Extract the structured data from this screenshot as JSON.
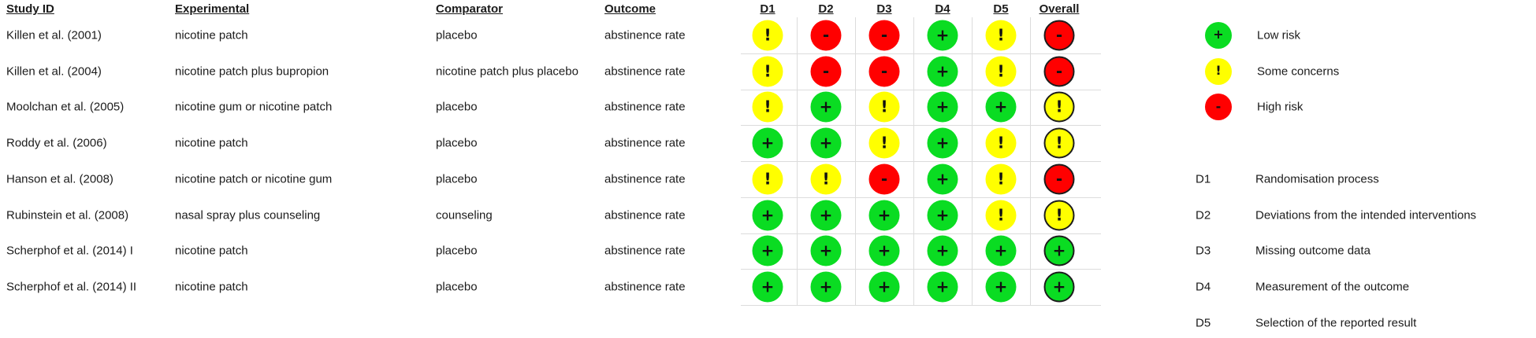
{
  "table": {
    "headers": {
      "study": "Study ID",
      "experimental": "Experimental",
      "comparator": "Comparator",
      "outcome": "Outcome",
      "domains": [
        "D1",
        "D2",
        "D3",
        "D4",
        "D5"
      ],
      "overall": "Overall"
    },
    "rows": [
      {
        "study": "Killen et al. (2001)",
        "experimental": "nicotine patch",
        "comparator": "placebo",
        "outcome": "abstinence rate",
        "judgements": [
          "some",
          "high",
          "high",
          "low",
          "some"
        ],
        "overall": "high"
      },
      {
        "study": "Killen et al. (2004)",
        "experimental": "nicotine patch plus bupropion",
        "comparator": "nicotine patch plus placebo",
        "outcome": "abstinence rate",
        "judgements": [
          "some",
          "high",
          "high",
          "low",
          "some"
        ],
        "overall": "high"
      },
      {
        "study": "Moolchan et al. (2005)",
        "experimental": "nicotine gum or nicotine patch",
        "comparator": "placebo",
        "outcome": "abstinence rate",
        "judgements": [
          "some",
          "low",
          "some",
          "low",
          "low"
        ],
        "overall": "some"
      },
      {
        "study": "Roddy et al. (2006)",
        "experimental": "nicotine patch",
        "comparator": "placebo",
        "outcome": "abstinence rate",
        "judgements": [
          "low",
          "low",
          "some",
          "low",
          "some"
        ],
        "overall": "some"
      },
      {
        "study": "Hanson et al. (2008)",
        "experimental": "nicotine patch or nicotine gum",
        "comparator": "placebo",
        "outcome": "abstinence rate",
        "judgements": [
          "some",
          "some",
          "high",
          "low",
          "some"
        ],
        "overall": "high"
      },
      {
        "study": "Rubinstein et al. (2008)",
        "experimental": "nasal spray plus counseling",
        "comparator": "counseling",
        "outcome": "abstinence rate",
        "judgements": [
          "low",
          "low",
          "low",
          "low",
          "some"
        ],
        "overall": "some"
      },
      {
        "study": "Scherphof et al. (2014) I",
        "experimental": "nicotine patch",
        "comparator": "placebo",
        "outcome": "abstinence rate",
        "judgements": [
          "low",
          "low",
          "low",
          "low",
          "low"
        ],
        "overall": "low"
      },
      {
        "study": "Scherphof et al. (2014) II",
        "experimental": "nicotine patch",
        "comparator": "placebo",
        "outcome": "abstinence rate",
        "judgements": [
          "low",
          "low",
          "low",
          "low",
          "low"
        ],
        "overall": "low"
      }
    ]
  },
  "judgement_styles": {
    "low": {
      "symbol": "+",
      "color": "#0adc22",
      "label": "Low risk"
    },
    "some": {
      "symbol": "!",
      "color": "#ffff00",
      "label": "Some concerns"
    },
    "high": {
      "symbol": "-",
      "color": "#ff0000",
      "label": "High risk"
    }
  },
  "legend": {
    "items": [
      {
        "judgement": "low",
        "label": "Low risk"
      },
      {
        "judgement": "some",
        "label": "Some concerns"
      },
      {
        "judgement": "high",
        "label": "High risk"
      }
    ]
  },
  "domain_definitions": [
    {
      "id": "D1",
      "label": "Randomisation process"
    },
    {
      "id": "D2",
      "label": "Deviations from the intended interventions"
    },
    {
      "id": "D3",
      "label": "Missing outcome data"
    },
    {
      "id": "D4",
      "label": "Measurement of the outcome"
    },
    {
      "id": "D5",
      "label": "Selection of the reported result"
    }
  ],
  "colors": {
    "low_risk": "#0adc22",
    "some_concerns": "#ffff00",
    "high_risk": "#ff0000",
    "gridline": "#dcdcdc",
    "overall_border": "#1c1c1c",
    "text": "#1b1b1b",
    "background": "#ffffff"
  },
  "chart_data": {
    "type": "table",
    "subtype": "risk-of-bias-traffic-light-plot",
    "columns": [
      "Study ID",
      "Experimental",
      "Comparator",
      "Outcome",
      "D1",
      "D2",
      "D3",
      "D4",
      "D5",
      "Overall"
    ],
    "rows": [
      [
        "Killen et al. (2001)",
        "nicotine patch",
        "placebo",
        "abstinence rate",
        "Some concerns",
        "High risk",
        "High risk",
        "Low risk",
        "Some concerns",
        "High risk"
      ],
      [
        "Killen et al. (2004)",
        "nicotine patch plus bupropion",
        "nicotine patch plus placebo",
        "abstinence rate",
        "Some concerns",
        "High risk",
        "High risk",
        "Low risk",
        "Some concerns",
        "High risk"
      ],
      [
        "Moolchan et al. (2005)",
        "nicotine gum or nicotine patch",
        "placebo",
        "abstinence rate",
        "Some concerns",
        "Low risk",
        "Some concerns",
        "Low risk",
        "Low risk",
        "Some concerns"
      ],
      [
        "Roddy et al. (2006)",
        "nicotine patch",
        "placebo",
        "abstinence rate",
        "Low risk",
        "Low risk",
        "Some concerns",
        "Low risk",
        "Some concerns",
        "Some concerns"
      ],
      [
        "Hanson et al. (2008)",
        "nicotine patch or nicotine gum",
        "placebo",
        "abstinence rate",
        "Some concerns",
        "Some concerns",
        "High risk",
        "Low risk",
        "Some concerns",
        "High risk"
      ],
      [
        "Rubinstein et al. (2008)",
        "nasal spray plus counseling",
        "counseling",
        "abstinence rate",
        "Low risk",
        "Low risk",
        "Low risk",
        "Low risk",
        "Some concerns",
        "Some concerns"
      ],
      [
        "Scherphof et al. (2014) I",
        "nicotine patch",
        "placebo",
        "abstinence rate",
        "Low risk",
        "Low risk",
        "Low risk",
        "Low risk",
        "Low risk",
        "Low risk"
      ],
      [
        "Scherphof et al. (2014) II",
        "nicotine patch",
        "placebo",
        "abstinence rate",
        "Low risk",
        "Low risk",
        "Low risk",
        "Low risk",
        "Low risk",
        "Low risk"
      ]
    ],
    "legend_entries": [
      "Low risk",
      "Some concerns",
      "High risk"
    ],
    "domain_key": {
      "D1": "Randomisation process",
      "D2": "Deviations from the intended interventions",
      "D3": "Missing outcome data",
      "D4": "Measurement of the outcome",
      "D5": "Selection of the reported result"
    },
    "grid": true,
    "legend_position": "right"
  }
}
